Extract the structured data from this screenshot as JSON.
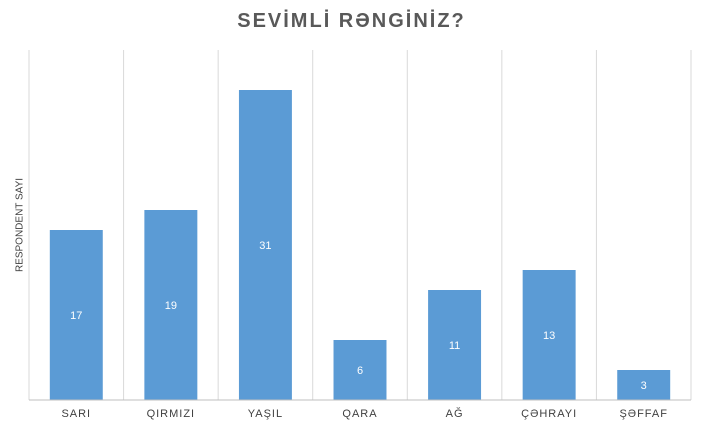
{
  "chart_data": {
    "type": "bar",
    "title": "SEVİMLİ RƏNGİNİZ?",
    "xlabel": "",
    "ylabel": "RESPONDENT SAYI",
    "categories": [
      "SARI",
      "QIRMIZI",
      "YAŞIL",
      "QARA",
      "AĞ",
      "ÇƏHRAYI",
      "ŞƏFFAF"
    ],
    "values": [
      17,
      19,
      31,
      6,
      11,
      13,
      3
    ],
    "ylim": [
      0,
      35
    ],
    "bar_color": "#5b9bd5",
    "grid": true,
    "legend": "none"
  }
}
